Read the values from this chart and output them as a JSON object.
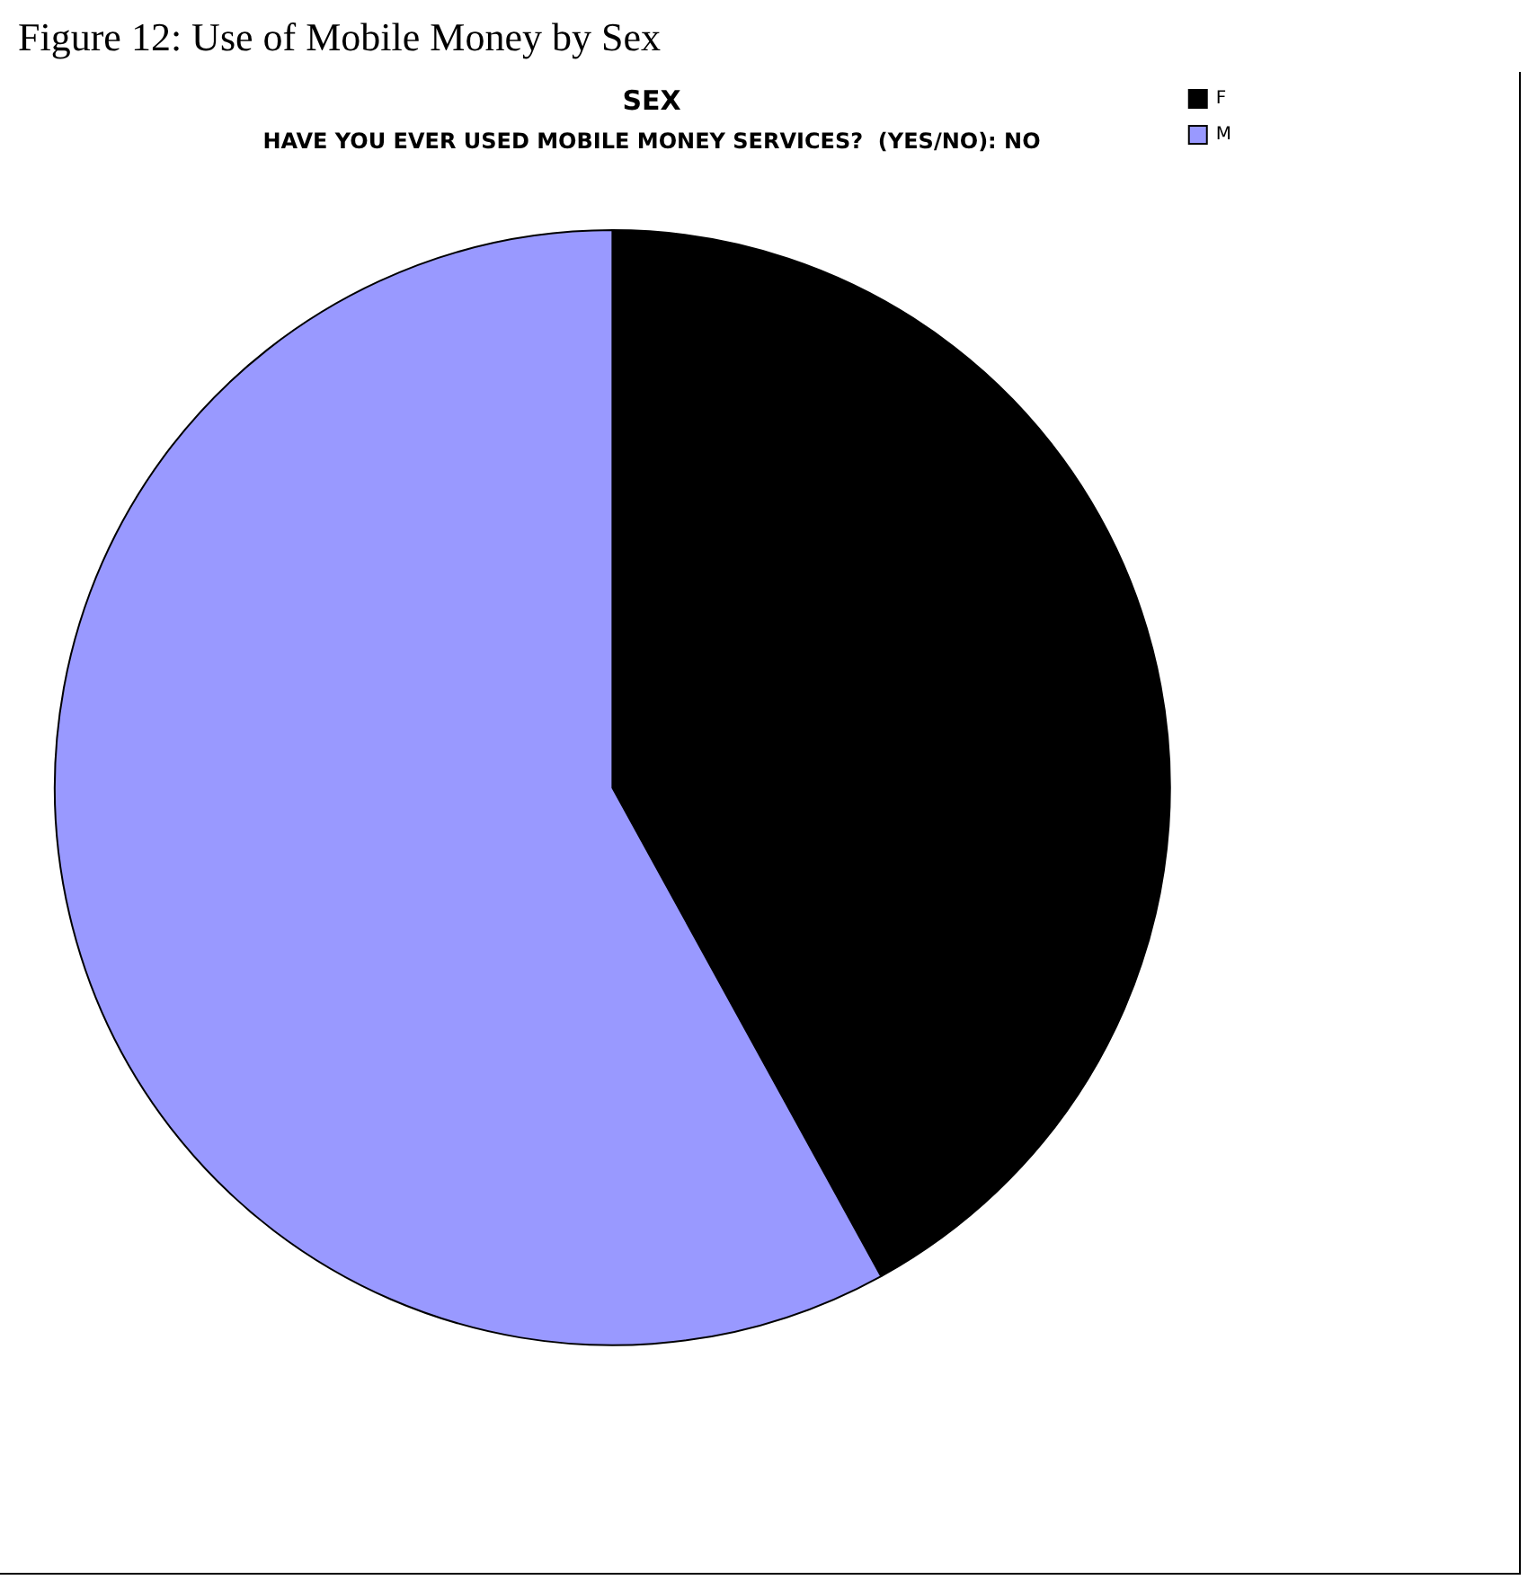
{
  "chart_data": {
    "type": "pie",
    "title": "SEX",
    "subtitle": "HAVE YOU EVER USED MOBILE MONEY SERVICES?  (YES/NO): NO",
    "annotations": [
      "Figure 12: Use of Mobile Money by Sex"
    ],
    "categories": [
      "F",
      "M"
    ],
    "values": [
      42,
      58
    ],
    "colors": [
      "#000000",
      "#9999ff"
    ],
    "legend": "top right"
  }
}
